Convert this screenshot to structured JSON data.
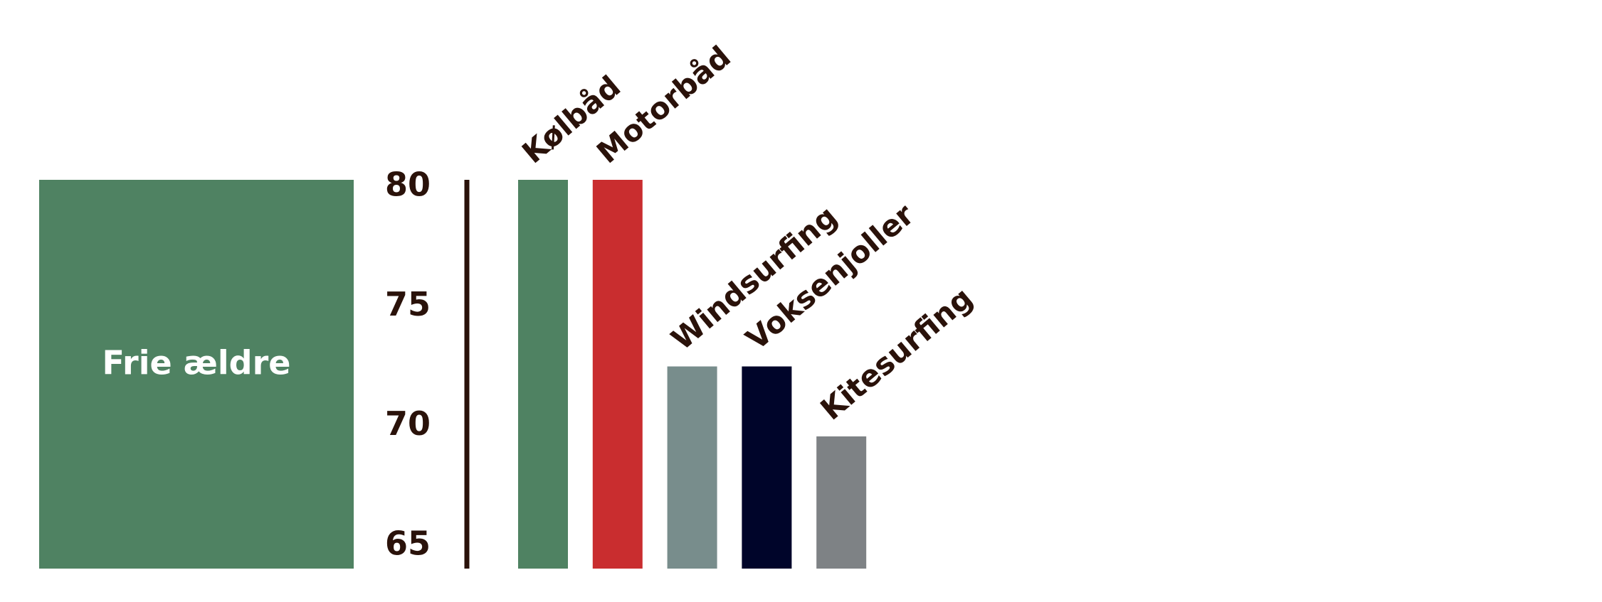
{
  "chart_data": {
    "type": "bar",
    "label": "Frie ældre",
    "label_color": "#4f8262",
    "categories": [
      "Kølbåd",
      "Motorbåd",
      "Windsurfing",
      "Voksenjoller",
      "Kitesurfing"
    ],
    "values": [
      80,
      80,
      72.8,
      72.8,
      70.1
    ],
    "colors": [
      "#4f8262",
      "#c92d2f",
      "#788d8c",
      "#00052a",
      "#7e8285"
    ],
    "ylim": [
      65,
      80
    ],
    "yticks": [
      65,
      70,
      75,
      80
    ],
    "grid": false
  }
}
